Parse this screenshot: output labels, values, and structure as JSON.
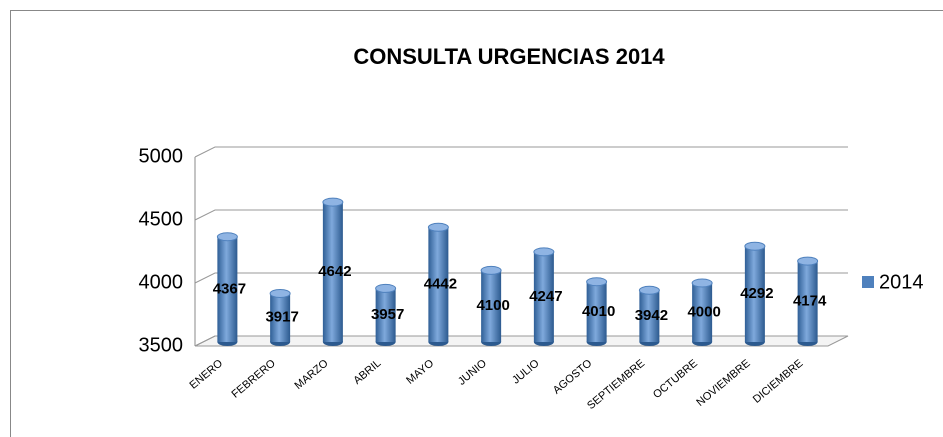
{
  "chart_data": {
    "type": "bar",
    "title": "CONSULTA URGENCIAS 2014",
    "categories": [
      "ENERO",
      "FEBRERO",
      "MARZO",
      "ABRIL",
      "MAYO",
      "JUNIO",
      "JULIO",
      "AGOSTO",
      "SEPTIEMBRE",
      "OCTUBRE",
      "NOVIEMBRE",
      "DICIEMBRE"
    ],
    "series": [
      {
        "name": "2014",
        "color": "#4f81bd",
        "values": [
          4367,
          3917,
          4642,
          3957,
          4442,
          4100,
          4247,
          4010,
          3942,
          4000,
          4292,
          4174
        ]
      }
    ],
    "ylim": [
      3500,
      5000
    ],
    "yticks": [
      3500,
      4000,
      4500,
      5000
    ],
    "grid": true,
    "legend": "right"
  }
}
